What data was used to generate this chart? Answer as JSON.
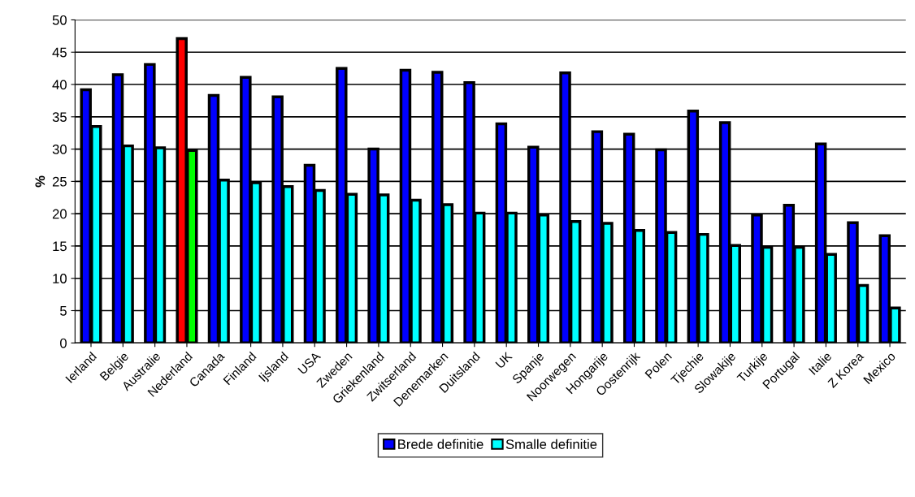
{
  "chart_data": {
    "type": "bar",
    "ylabel": "%",
    "categories": [
      "Ierland",
      "Belgie",
      "Australie",
      "Nederland",
      "Canada",
      "Finland",
      "Ijsland",
      "USA",
      "Zweden",
      "Griekenland",
      "Zwitserland",
      "Denemarken",
      "Duitsland",
      "UK",
      "Spanje",
      "Noorwegen",
      "Hongarije",
      "Oostenrijk",
      "Polen",
      "Tjechie",
      "Slowakije",
      "Turkije",
      "Portugal",
      "Italie",
      "Z Korea",
      "Mexico"
    ],
    "series": [
      {
        "name": "Brede definitie",
        "color": "#0000ff",
        "colors": [
          "#0000ff",
          "#0000ff",
          "#0000ff",
          "#ff0000",
          "#0000ff",
          "#0000ff",
          "#0000ff",
          "#0000ff",
          "#0000ff",
          "#0000ff",
          "#0000ff",
          "#0000ff",
          "#0000ff",
          "#0000ff",
          "#0000ff",
          "#0000ff",
          "#0000ff",
          "#0000ff",
          "#0000ff",
          "#0000ff",
          "#0000ff",
          "#0000ff",
          "#0000ff",
          "#0000ff",
          "#0000ff",
          "#0000ff"
        ],
        "values": [
          39.2,
          41.5,
          43.1,
          47.1,
          38.3,
          41.1,
          38.1,
          27.5,
          42.5,
          30.0,
          42.2,
          41.9,
          40.3,
          33.9,
          30.3,
          41.8,
          32.7,
          32.3,
          29.9,
          35.9,
          34.1,
          19.8,
          21.3,
          30.8,
          18.6,
          16.6
        ]
      },
      {
        "name": "Smalle definitie",
        "color": "#00ffff",
        "colors": [
          "#00ffff",
          "#00ffff",
          "#00ffff",
          "#00ff00",
          "#00ffff",
          "#00ffff",
          "#00ffff",
          "#00ffff",
          "#00ffff",
          "#00ffff",
          "#00ffff",
          "#00ffff",
          "#00ffff",
          "#00ffff",
          "#00ffff",
          "#00ffff",
          "#00ffff",
          "#00ffff",
          "#00ffff",
          "#00ffff",
          "#00ffff",
          "#00ffff",
          "#00ffff",
          "#00ffff",
          "#00ffff",
          "#00ffff"
        ],
        "values": [
          33.5,
          30.5,
          30.2,
          29.8,
          25.2,
          24.8,
          24.2,
          23.6,
          23.0,
          22.9,
          22.1,
          21.4,
          20.1,
          20.1,
          19.8,
          18.8,
          18.5,
          17.4,
          17.1,
          16.8,
          15.1,
          14.8,
          14.8,
          13.7,
          8.9,
          5.4
        ]
      }
    ],
    "ylim": [
      0,
      50
    ],
    "yticks": [
      0,
      5,
      10,
      15,
      20,
      25,
      30,
      35,
      40,
      45,
      50
    ],
    "grid": "y",
    "legend": "bottom"
  }
}
